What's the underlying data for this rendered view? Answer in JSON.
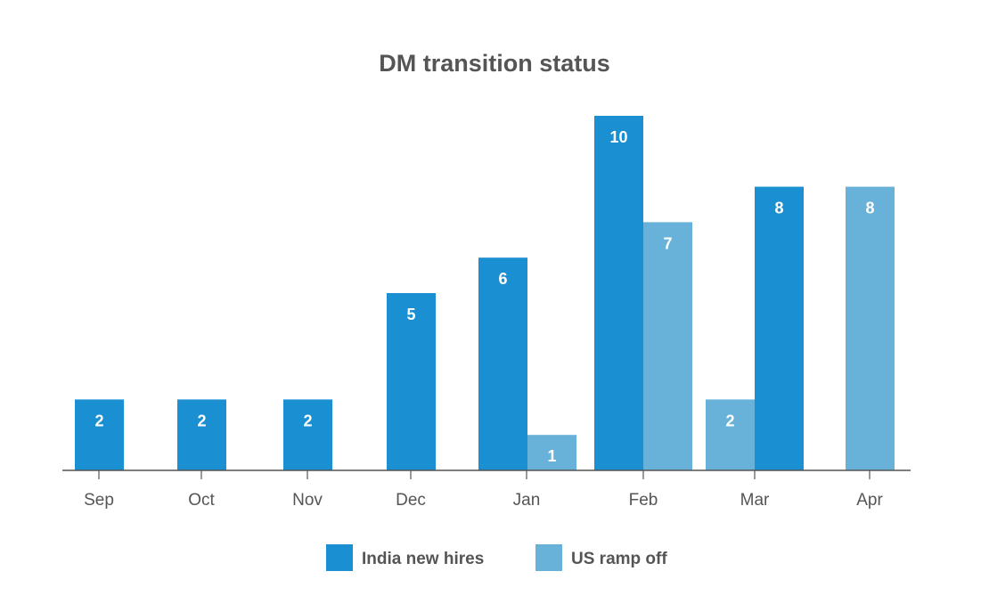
{
  "chart_data": {
    "type": "bar",
    "title": "DM transition status",
    "xlabel": "",
    "ylabel": "",
    "ylim": [
      0,
      10
    ],
    "grid": false,
    "legend_position": "bottom",
    "categories": [
      "Sep",
      "Oct",
      "Nov",
      "Dec",
      "Jan",
      "Feb",
      "Mar",
      "Apr"
    ],
    "series": [
      {
        "name": "India new hires",
        "color": "#1a8fd1",
        "values": [
          2,
          2,
          2,
          5,
          6,
          10,
          8,
          null
        ]
      },
      {
        "name": "US ramp off",
        "color": "#68b2da",
        "values": [
          null,
          null,
          null,
          null,
          1,
          7,
          2,
          8
        ]
      }
    ]
  }
}
